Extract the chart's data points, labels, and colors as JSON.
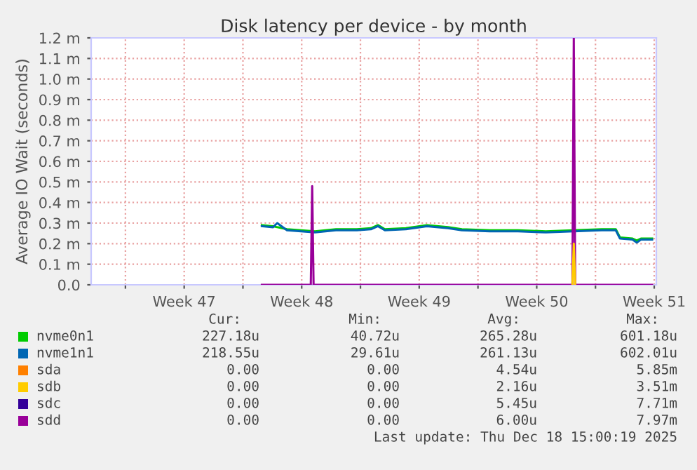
{
  "chart_data": {
    "type": "line",
    "title": "Disk latency per device - by month",
    "ylabel": "Average IO Wait (seconds)",
    "xlim": [
      "2025-11-14T23:00",
      "2025-12-18T15:00"
    ],
    "xticks": [
      {
        "value": "2025-11-17T00:00",
        "label": null
      },
      {
        "value": "2025-11-20T12:00",
        "label": "Week 47"
      },
      {
        "value": "2025-11-24T00:00",
        "label": null
      },
      {
        "value": "2025-11-27T12:00",
        "label": "Week 48"
      },
      {
        "value": "2025-12-01T00:00",
        "label": null
      },
      {
        "value": "2025-12-04T12:00",
        "label": "Week 49"
      },
      {
        "value": "2025-12-08T00:00",
        "label": null
      },
      {
        "value": "2025-12-11T12:00",
        "label": "Week 50"
      },
      {
        "value": "2025-12-15T00:00",
        "label": null
      },
      {
        "value": "2025-12-18T12:00",
        "label": "Week 51"
      }
    ],
    "ylim": [
      0,
      1.2
    ],
    "yticks": [
      {
        "value": 0,
        "label": "0.0"
      },
      {
        "value": 0.1,
        "label": "0.1 m"
      },
      {
        "value": 0.2,
        "label": "0.2 m"
      },
      {
        "value": 0.3,
        "label": "0.3 m"
      },
      {
        "value": 0.4,
        "label": "0.4 m"
      },
      {
        "value": 0.5,
        "label": "0.5 m"
      },
      {
        "value": 0.6,
        "label": "0.6 m"
      },
      {
        "value": 0.7,
        "label": "0.7 m"
      },
      {
        "value": 0.8,
        "label": "0.8 m"
      },
      {
        "value": 0.9,
        "label": "0.9 m"
      },
      {
        "value": 1.0,
        "label": "1.0 m"
      },
      {
        "value": 1.1,
        "label": "1.1 m"
      },
      {
        "value": 1.2,
        "label": "1.2 m"
      }
    ],
    "grid": true,
    "legend": "bottom",
    "marker": "none",
    "line_style": "solid",
    "series": [
      {
        "name": "nvme0n1",
        "color": "#00cc00",
        "x": [
          "2025-11-25T03:00",
          "2025-11-25T19:00",
          "2025-11-26T01:00",
          "2025-11-26T15:00",
          "2025-11-27T11:00",
          "2025-11-28T07:00",
          "2025-11-29T13:00",
          "2025-11-30T19:00",
          "2025-12-01T15:00",
          "2025-12-02T01:00",
          "2025-12-02T11:00",
          "2025-12-03T17:00",
          "2025-12-04T23:00",
          "2025-12-06T05:00",
          "2025-12-07T01:00",
          "2025-12-08T17:00",
          "2025-12-10T09:00",
          "2025-12-12T01:00",
          "2025-12-13T17:00",
          "2025-12-15T09:00",
          "2025-12-16T05:00",
          "2025-12-16T11:00",
          "2025-12-17T05:00",
          "2025-12-17T11:00",
          "2025-12-17T17:00",
          "2025-12-18T09:00"
        ],
        "values": [
          0.29,
          0.285,
          0.28,
          0.27,
          0.265,
          0.26,
          0.27,
          0.27,
          0.275,
          0.29,
          0.27,
          0.275,
          0.29,
          0.28,
          0.27,
          0.265,
          0.265,
          0.26,
          0.265,
          0.27,
          0.27,
          0.23,
          0.225,
          0.215,
          0.225,
          0.225
        ]
      },
      {
        "name": "nvme1n1",
        "color": "#0066b3",
        "x": [
          "2025-11-25T03:00",
          "2025-11-25T19:00",
          "2025-11-26T01:00",
          "2025-11-26T15:00",
          "2025-11-27T11:00",
          "2025-11-28T07:00",
          "2025-11-29T13:00",
          "2025-11-30T19:00",
          "2025-12-01T15:00",
          "2025-12-02T01:00",
          "2025-12-02T11:00",
          "2025-12-03T17:00",
          "2025-12-04T23:00",
          "2025-12-06T05:00",
          "2025-12-07T01:00",
          "2025-12-08T17:00",
          "2025-12-10T09:00",
          "2025-12-12T01:00",
          "2025-12-13T17:00",
          "2025-12-15T09:00",
          "2025-12-16T05:00",
          "2025-12-16T11:00",
          "2025-12-17T05:00",
          "2025-12-17T11:00",
          "2025-12-17T17:00",
          "2025-12-18T09:00"
        ],
        "values": [
          0.285,
          0.28,
          0.3,
          0.265,
          0.26,
          0.255,
          0.265,
          0.265,
          0.27,
          0.285,
          0.265,
          0.27,
          0.285,
          0.275,
          0.265,
          0.26,
          0.26,
          0.255,
          0.26,
          0.265,
          0.265,
          0.225,
          0.22,
          0.205,
          0.22,
          0.22
        ]
      },
      {
        "name": "sda",
        "color": "#ff8000"
      },
      {
        "name": "sdb",
        "color": "#ffcc00",
        "x": [
          "2025-12-13T15:00",
          "2025-12-13T17:00",
          "2025-12-13T19:00"
        ],
        "values": [
          0,
          0.2,
          0
        ]
      },
      {
        "name": "sdc",
        "color": "#330099"
      },
      {
        "name": "sdd",
        "color": "#990099",
        "x": [
          "2025-11-25T03:00",
          "2025-11-28T01:00",
          "2025-11-28T03:00",
          "2025-11-28T05:00",
          "2025-12-13T15:00",
          "2025-12-13T17:00",
          "2025-12-13T19:00",
          "2025-12-18T09:00"
        ],
        "values": [
          0,
          0,
          0.48,
          0,
          0,
          1.2,
          0,
          0
        ]
      }
    ],
    "annotations": [
      "Cur:",
      "Min:",
      "Avg:",
      "Max:",
      "227.18u",
      "40.72u",
      "265.28u",
      "601.18u",
      "218.55u",
      "29.61u",
      "261.13u",
      "602.01u",
      "0.00",
      "0.00",
      "4.54u",
      "5.85m",
      "0.00",
      "0.00",
      "2.16u",
      "3.51m",
      "0.00",
      "0.00",
      "5.45u",
      "7.71m",
      "0.00",
      "0.00",
      "6.00u",
      "7.97m",
      "Last update: Thu Dec 18 15:00:19 2025"
    ]
  }
}
